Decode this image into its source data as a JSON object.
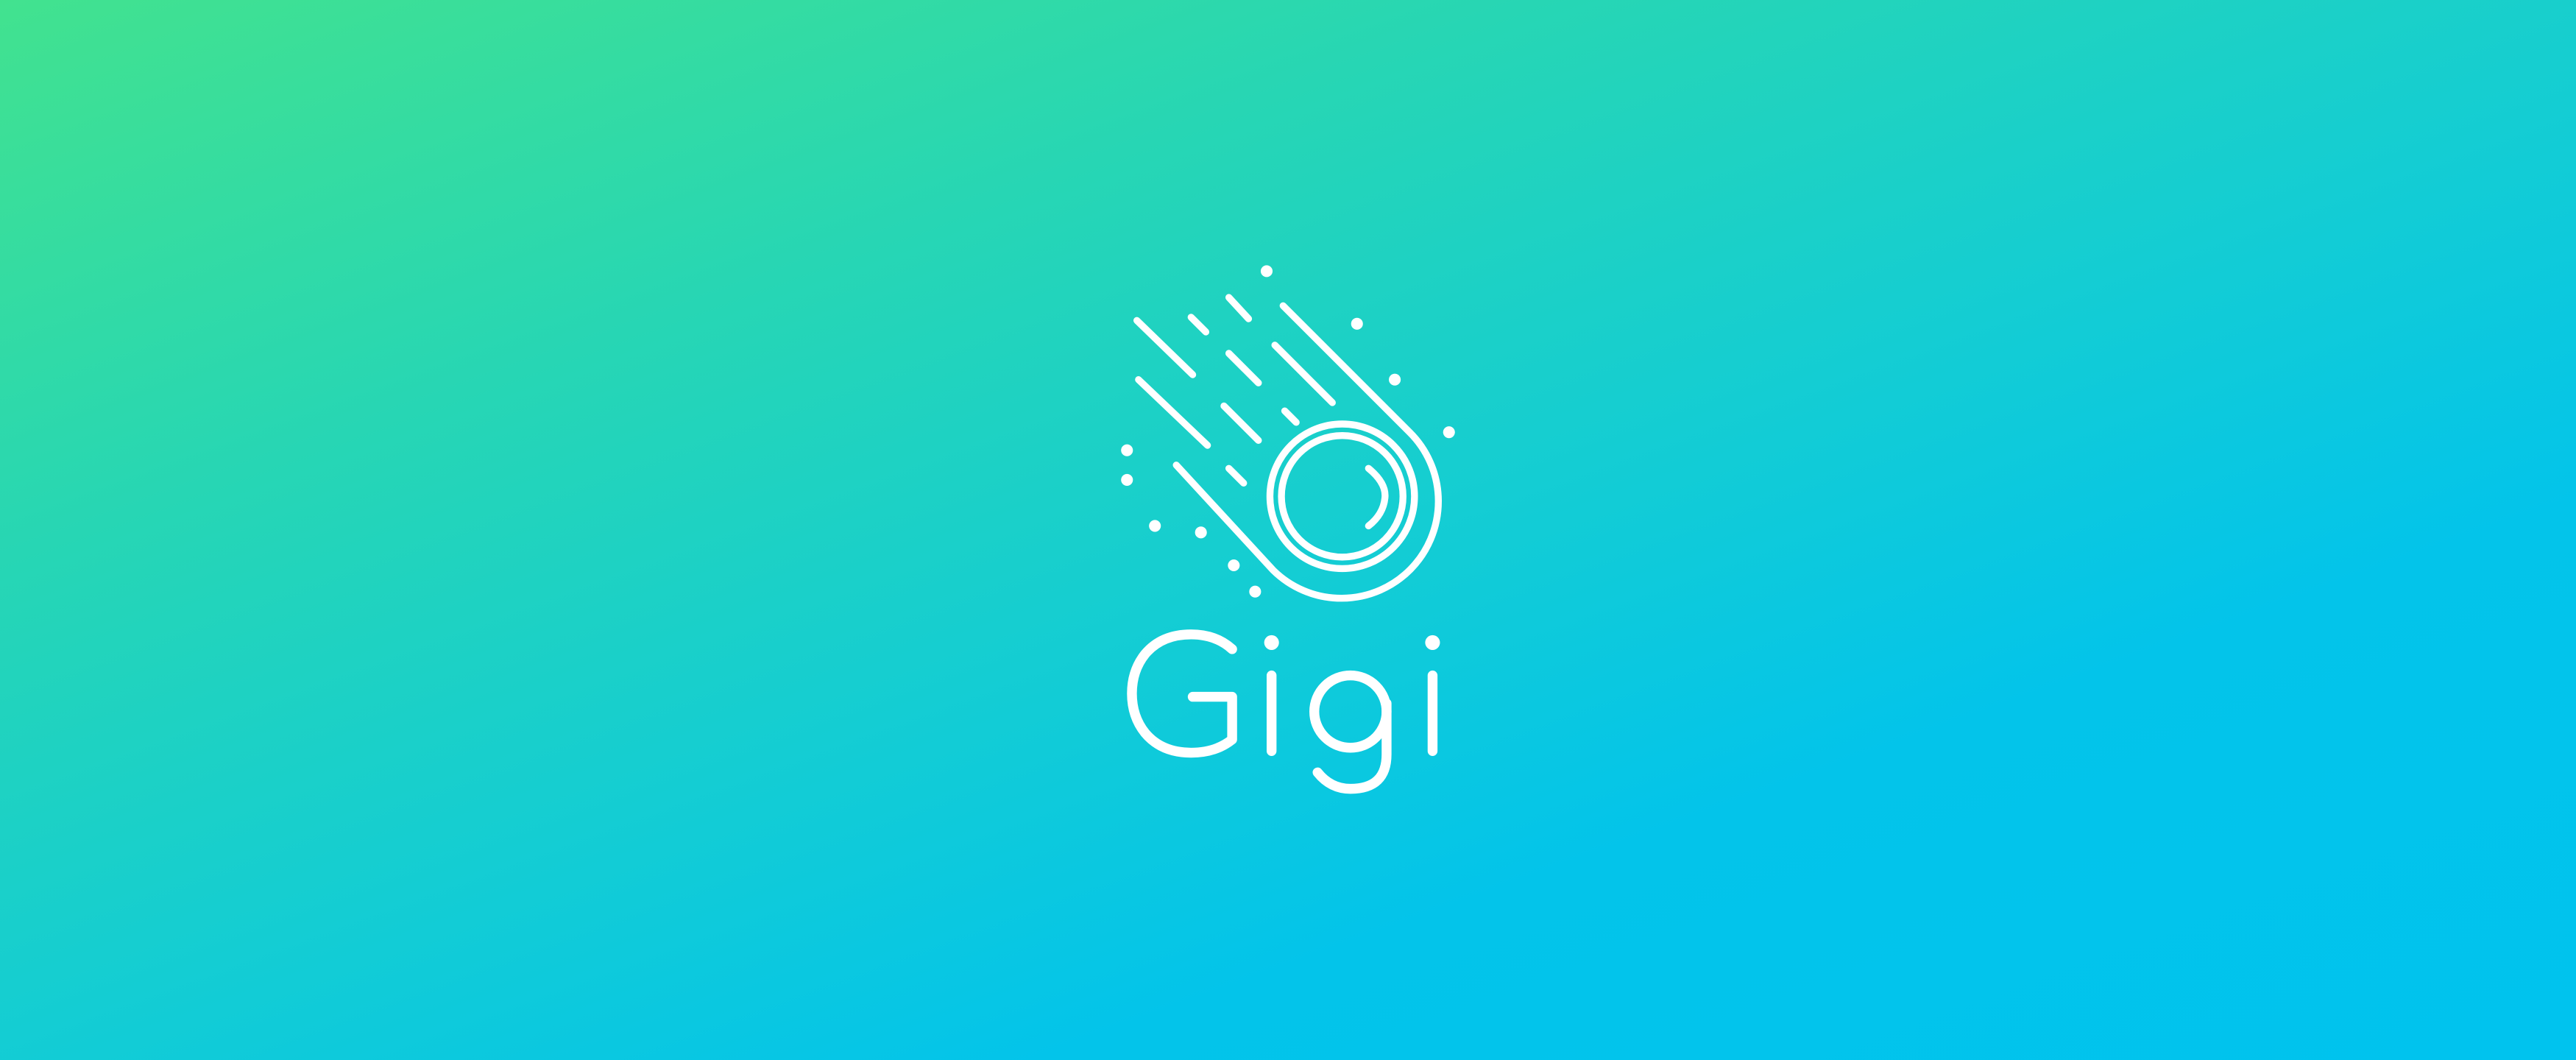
{
  "brand": {
    "name": "Gigi",
    "icon": "comet-icon",
    "colors": {
      "gradient_start": "#42e28f",
      "gradient_end": "#00c3ee",
      "foreground": "#ffffff"
    }
  }
}
